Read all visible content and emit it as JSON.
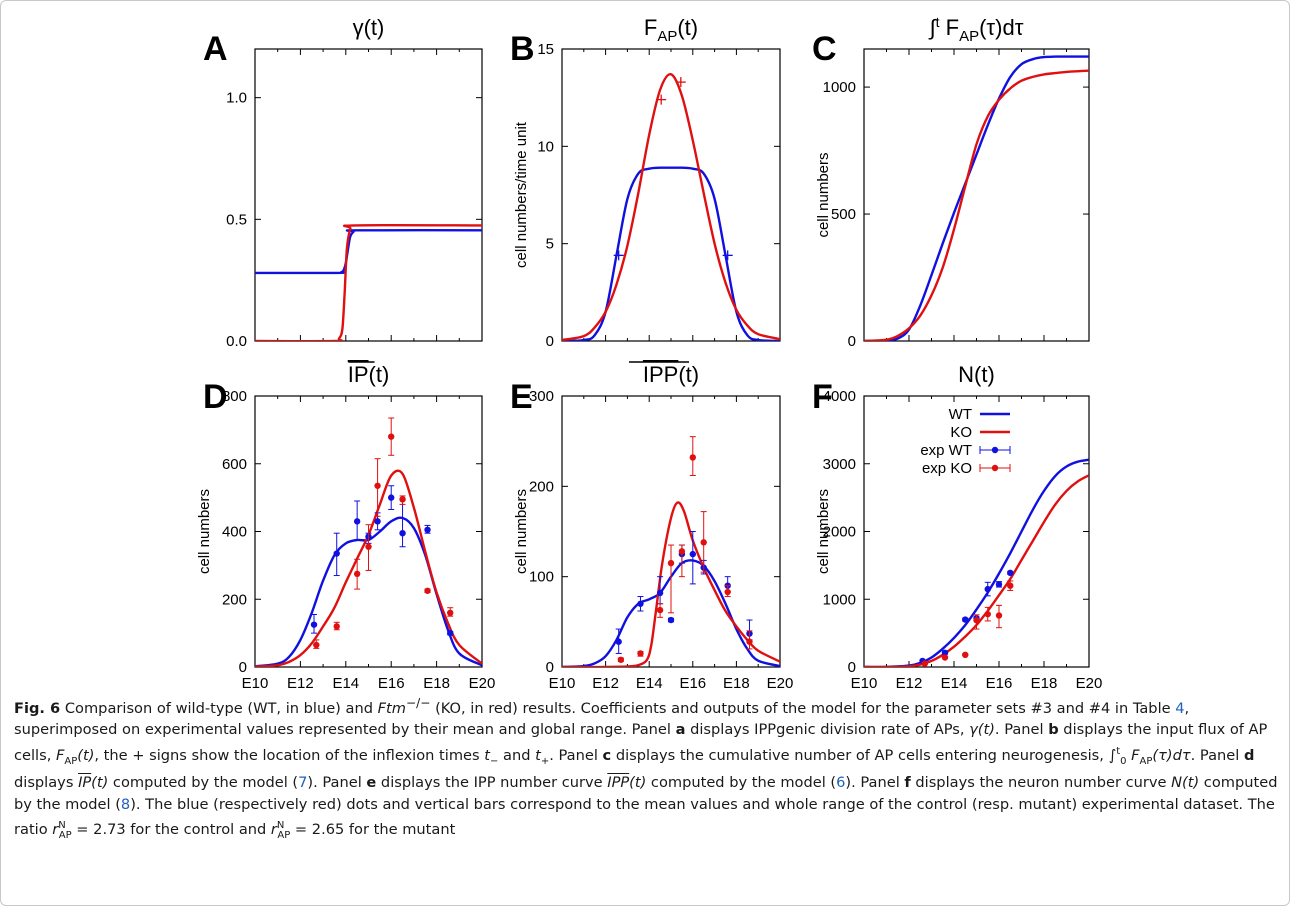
{
  "chart_data": [
    {
      "panel_letter": "A",
      "title": "γ(t)",
      "type": "line",
      "ylabel": "",
      "xlim": [
        10,
        20
      ],
      "ylim": [
        0,
        1.2
      ],
      "yticks": [
        "0.0",
        "0.5",
        "1.0"
      ],
      "ytick_values": [
        0,
        0.5,
        1.0
      ],
      "xticks": [],
      "series": [
        {
          "color": "#1010e0",
          "x": [
            10,
            13.6,
            13.8,
            13.9,
            14.0,
            14.1,
            14.2,
            14.35,
            14.5,
            20
          ],
          "y": [
            0.28,
            0.28,
            0.283,
            0.29,
            0.32,
            0.38,
            0.43,
            0.45,
            0.455,
            0.455
          ]
        },
        {
          "color": "#e01010",
          "x": [
            10,
            13.5,
            13.7,
            13.85,
            13.95,
            14.05,
            14.2,
            14.4,
            20
          ],
          "y": [
            0,
            0,
            0.01,
            0.05,
            0.2,
            0.38,
            0.46,
            0.475,
            0.475
          ]
        }
      ]
    },
    {
      "panel_letter": "B",
      "title": "F_AP(t)",
      "type": "line",
      "ylabel": "cell numbers/time unit",
      "xlim": [
        10,
        20
      ],
      "ylim": [
        0,
        15
      ],
      "yticks": [
        "0",
        "5",
        "10",
        "15"
      ],
      "ytick_values": [
        0,
        5,
        10,
        15
      ],
      "xticks": [],
      "series": [
        {
          "color": "#1010e0",
          "x": [
            10,
            11,
            11.5,
            12,
            12.5,
            13,
            13.5,
            14,
            14.5,
            15,
            15.5,
            16,
            16.5,
            17,
            17.5,
            18,
            18.5,
            19,
            20
          ],
          "y": [
            0,
            0.05,
            0.3,
            1.5,
            4.4,
            7.3,
            8.6,
            8.85,
            8.9,
            8.9,
            8.9,
            8.85,
            8.6,
            7.3,
            4.4,
            1.5,
            0.3,
            0.05,
            0
          ]
        },
        {
          "color": "#e01010",
          "x": [
            10,
            11,
            11.5,
            12,
            12.5,
            13,
            13.5,
            14,
            14.5,
            15,
            15.5,
            16,
            16.5,
            17,
            17.5,
            18,
            18.5,
            19,
            20
          ],
          "y": [
            0.05,
            0.25,
            0.7,
            1.5,
            2.9,
            4.9,
            7.6,
            10.6,
            12.9,
            13.7,
            12.6,
            10.3,
            7.6,
            5.0,
            3.0,
            1.6,
            0.8,
            0.35,
            0.1
          ]
        }
      ],
      "markers": [
        {
          "color": "#1010e0",
          "x": [
            12.6,
            17.6
          ],
          "y": [
            4.4,
            4.4
          ]
        },
        {
          "color": "#e01010",
          "x": [
            14.55,
            15.45
          ],
          "y": [
            12.4,
            13.3
          ]
        }
      ]
    },
    {
      "panel_letter": "C",
      "title": "∫t FAP(τ)dτ",
      "type": "line",
      "ylabel": "cell numbers",
      "xlim": [
        10,
        20
      ],
      "ylim": [
        0,
        1150
      ],
      "yticks": [
        "0",
        "500",
        "1000"
      ],
      "ytick_values": [
        0,
        500,
        1000
      ],
      "xticks": [],
      "series": [
        {
          "color": "#1010e0",
          "x": [
            10,
            11,
            11.5,
            12,
            12.5,
            13,
            13.5,
            14,
            14.5,
            15,
            15.5,
            16,
            16.5,
            17,
            17.5,
            18,
            18.5,
            19,
            20
          ],
          "y": [
            0,
            2,
            10,
            45,
            140,
            260,
            385,
            505,
            620,
            735,
            850,
            955,
            1040,
            1090,
            1110,
            1118,
            1120,
            1120,
            1120
          ]
        },
        {
          "color": "#e01010",
          "x": [
            10,
            11,
            11.5,
            12,
            12.5,
            13,
            13.5,
            14,
            14.5,
            15,
            15.5,
            16,
            16.5,
            17,
            17.5,
            18,
            18.5,
            19,
            20
          ],
          "y": [
            0,
            5,
            20,
            50,
            100,
            180,
            290,
            440,
            610,
            775,
            885,
            950,
            995,
            1025,
            1040,
            1050,
            1055,
            1060,
            1065
          ]
        }
      ]
    },
    {
      "panel_letter": "D",
      "title": "IP(t)",
      "title_overline": "IP",
      "title_rest": "(t)",
      "type": "line",
      "ylabel": "cell numbers",
      "xlim": [
        10,
        20
      ],
      "ylim": [
        0,
        800
      ],
      "yticks": [
        "0",
        "200",
        "400",
        "600",
        "800"
      ],
      "ytick_values": [
        0,
        200,
        400,
        600,
        800
      ],
      "xticks": [
        "E10",
        "E12",
        "E14",
        "E16",
        "E18",
        "E20"
      ],
      "xtick_values": [
        10,
        12,
        14,
        16,
        18,
        20
      ],
      "series": [
        {
          "name": "WT",
          "color": "#1010e0",
          "x": [
            10,
            11,
            11.5,
            12,
            12.5,
            13,
            13.5,
            14,
            14.5,
            15,
            15.5,
            16,
            16.5,
            17,
            17.5,
            18,
            18.5,
            19,
            20
          ],
          "y": [
            2,
            10,
            30,
            80,
            160,
            255,
            330,
            365,
            375,
            375,
            400,
            430,
            440,
            410,
            330,
            215,
            110,
            40,
            5
          ]
        },
        {
          "name": "KO",
          "color": "#e01010",
          "x": [
            10,
            11,
            11.5,
            12,
            12.5,
            13,
            13.5,
            14,
            14.5,
            15,
            15.5,
            16,
            16.5,
            17,
            17.5,
            18,
            18.5,
            19,
            20
          ],
          "y": [
            1,
            5,
            15,
            35,
            70,
            120,
            175,
            250,
            320,
            390,
            480,
            565,
            570,
            470,
            340,
            220,
            130,
            65,
            10
          ]
        }
      ],
      "exp": [
        {
          "color": "#1010e0",
          "x": [
            12.6,
            13.6,
            14.5,
            15.0,
            15.4,
            16.0,
            16.5,
            17.6,
            18.6
          ],
          "y": [
            125,
            335,
            430,
            385,
            430,
            500,
            395,
            405,
            100
          ],
          "lo": [
            100,
            270,
            375,
            365,
            405,
            465,
            355,
            395,
            95
          ],
          "hi": [
            155,
            395,
            490,
            395,
            455,
            535,
            495,
            418,
            105
          ]
        },
        {
          "color": "#e01010",
          "x": [
            12.7,
            13.6,
            14.5,
            15.0,
            15.4,
            16.0,
            16.5,
            17.6,
            18.6
          ],
          "y": [
            65,
            120,
            275,
            355,
            535,
            680,
            495,
            225,
            160
          ],
          "lo": [
            55,
            110,
            230,
            285,
            445,
            625,
            480,
            220,
            150
          ],
          "hi": [
            80,
            132,
            318,
            420,
            615,
            735,
            505,
            230,
            175
          ]
        }
      ]
    },
    {
      "panel_letter": "E",
      "title": "IPP(t)",
      "title_overline": "IPP",
      "title_rest": "(t)",
      "type": "line",
      "ylabel": "cell numbers",
      "xlim": [
        10,
        20
      ],
      "ylim": [
        0,
        300
      ],
      "yticks": [
        "0",
        "100",
        "200",
        "300"
      ],
      "ytick_values": [
        0,
        100,
        200,
        300
      ],
      "xticks": [
        "E10",
        "E12",
        "E14",
        "E16",
        "E18",
        "E20"
      ],
      "xtick_values": [
        10,
        12,
        14,
        16,
        18,
        20
      ],
      "series": [
        {
          "name": "WT",
          "color": "#1010e0",
          "x": [
            10,
            11,
            11.5,
            12,
            12.5,
            13,
            13.5,
            14,
            14.5,
            15,
            15.5,
            16,
            16.5,
            17,
            17.5,
            18,
            18.5,
            19,
            20
          ],
          "y": [
            0,
            1,
            4,
            12,
            30,
            55,
            70,
            75,
            82,
            100,
            115,
            118,
            112,
            95,
            70,
            42,
            20,
            7,
            1
          ]
        },
        {
          "name": "KO",
          "color": "#e01010",
          "x": [
            10,
            11,
            12,
            13,
            13.5,
            13.9,
            14.1,
            14.3,
            14.6,
            15.0,
            15.3,
            15.6,
            16.0,
            16.5,
            17,
            17.5,
            18,
            18.5,
            19,
            20
          ],
          "y": [
            0,
            0,
            0,
            0.5,
            2,
            8,
            25,
            60,
            115,
            165,
            182,
            172,
            140,
            110,
            85,
            62,
            45,
            30,
            18,
            6
          ]
        }
      ],
      "exp": [
        {
          "color": "#1010e0",
          "x": [
            12.6,
            13.6,
            14.5,
            15.0,
            15.5,
            16.0,
            16.5,
            17.6,
            18.6
          ],
          "y": [
            28,
            70,
            82,
            52,
            125,
            125,
            110,
            90,
            37
          ],
          "lo": [
            15,
            62,
            70,
            50,
            115,
            92,
            103,
            83,
            30
          ],
          "hi": [
            42,
            78,
            100,
            54,
            135,
            150,
            118,
            100,
            52
          ]
        },
        {
          "color": "#e01010",
          "x": [
            12.7,
            13.6,
            14.5,
            15.0,
            15.5,
            16.0,
            16.5,
            17.6,
            18.6
          ],
          "y": [
            8,
            15,
            63,
            115,
            128,
            232,
            138,
            83,
            28
          ],
          "lo": [
            6,
            12,
            55,
            60,
            100,
            212,
            105,
            78,
            20
          ],
          "hi": [
            10,
            17,
            70,
            135,
            135,
            255,
            172,
            90,
            40
          ]
        }
      ]
    },
    {
      "panel_letter": "F",
      "title": "N(t)",
      "type": "line",
      "ylabel": "cell numbers",
      "xlim": [
        10,
        20
      ],
      "ylim": [
        0,
        4000
      ],
      "yticks": [
        "0",
        "1000",
        "2000",
        "3000",
        "4000"
      ],
      "ytick_values": [
        0,
        1000,
        2000,
        3000,
        4000
      ],
      "xticks": [
        "E10",
        "E12",
        "E14",
        "E16",
        "E18",
        "E20"
      ],
      "xtick_values": [
        10,
        12,
        14,
        16,
        18,
        20
      ],
      "legend": [
        "WT",
        "KO",
        "exp WT",
        "exp KO"
      ],
      "legend_placement": "top-left",
      "series": [
        {
          "name": "WT",
          "color": "#1010e0",
          "x": [
            10,
            11,
            12,
            12.5,
            13,
            13.5,
            14,
            14.5,
            15,
            15.5,
            16,
            16.5,
            17,
            17.5,
            18,
            18.5,
            19,
            19.5,
            20
          ],
          "y": [
            0,
            2,
            20,
            60,
            140,
            270,
            430,
            620,
            850,
            1100,
            1380,
            1680,
            2000,
            2320,
            2600,
            2820,
            2960,
            3030,
            3060
          ]
        },
        {
          "name": "KO",
          "color": "#e01010",
          "x": [
            10,
            11,
            12,
            12.5,
            13,
            13.5,
            14,
            14.5,
            15,
            15.5,
            16,
            16.5,
            17,
            17.5,
            18,
            18.5,
            19,
            19.5,
            20
          ],
          "y": [
            0,
            1,
            10,
            35,
            90,
            180,
            300,
            450,
            620,
            830,
            1060,
            1300,
            1580,
            1860,
            2140,
            2400,
            2600,
            2740,
            2830
          ]
        }
      ],
      "exp": [
        {
          "color": "#1010e0",
          "x": [
            12.6,
            13.6,
            14.5,
            15.0,
            15.5,
            16.0,
            16.5
          ],
          "y": [
            90,
            210,
            700,
            720,
            1150,
            1220,
            1390
          ],
          "lo": [
            80,
            190,
            680,
            700,
            1050,
            1180,
            1370
          ],
          "hi": [
            100,
            235,
            720,
            740,
            1250,
            1260,
            1410
          ]
        },
        {
          "color": "#e01010",
          "x": [
            12.7,
            13.6,
            14.5,
            15.0,
            15.5,
            16.0,
            16.5
          ],
          "y": [
            50,
            140,
            180,
            690,
            780,
            760,
            1200
          ],
          "lo": [
            40,
            130,
            170,
            560,
            680,
            580,
            1130
          ],
          "hi": [
            60,
            150,
            190,
            770,
            880,
            910,
            1270
          ]
        }
      ]
    }
  ],
  "caption": {
    "fig_label": "Fig. 6",
    "p1": " Comparison of wild-type (WT, in blue) and ",
    "ftm": "Ftm",
    "ftm_sup": "−/−",
    "p2": " (KO, in red) results. Coefficients and outputs of the model for the parameter sets #3 and #4 in Table ",
    "table_ref": "4",
    "p3": ", superimposed on experimental values represented by their mean and global range. Panel ",
    "a": "a",
    "p4": " displays IPPgenic division rate of APs, ",
    "gamma": "γ(t)",
    "p5": ". Panel ",
    "b": "b",
    "p6": " displays the input flux of AP cells, ",
    "fap": "F",
    "fap_sub": "AP",
    "fap_t": "(t)",
    "p7": ", the + signs show the location of the inflexion times ",
    "tminus": "t",
    "tminus_sub": "−",
    "p8": " and ",
    "tplus": "t",
    "tplus_sub": "+",
    "p9": ". Panel ",
    "c": "c",
    "p10": " displays the cumulative number of AP cells entering neurogenesis, ",
    "integral": "∫",
    "int_sup": "t",
    "int_sub": "0",
    "int_body": " F",
    "int_body_sub": "AP",
    "int_tail": "(τ)dτ",
    "p11": ". Panel ",
    "d": "d",
    "p12": " displays ",
    "ipbar": "IP",
    "ipbar_t": "(t)",
    "p13": " computed by the model (",
    "ref7": "7",
    "p14": "). Panel ",
    "e": "e",
    "p15": " displays the IPP number curve ",
    "ippbar": "IPP",
    "ippbar_t": "(t)",
    "p16": " computed by the model (",
    "ref6": "6",
    "p17": "). Panel ",
    "f": "f",
    "p18": " displays the neuron number curve ",
    "nt": "N(t)",
    "p19": " computed by the model (",
    "ref8": "8",
    "p20": "). The blue (respectively red) dots and vertical bars correspond to the mean values and whole range of the control (resp. mutant) experimental dataset. The ratio ",
    "r": "r",
    "r_sup": "N",
    "r_sub": "AP",
    "p21": " = 2.73 for the control and ",
    "r2": "r",
    "r2_sup": "N",
    "r2_sub": "AP",
    "p22": " = 2.65 for the mutant"
  }
}
